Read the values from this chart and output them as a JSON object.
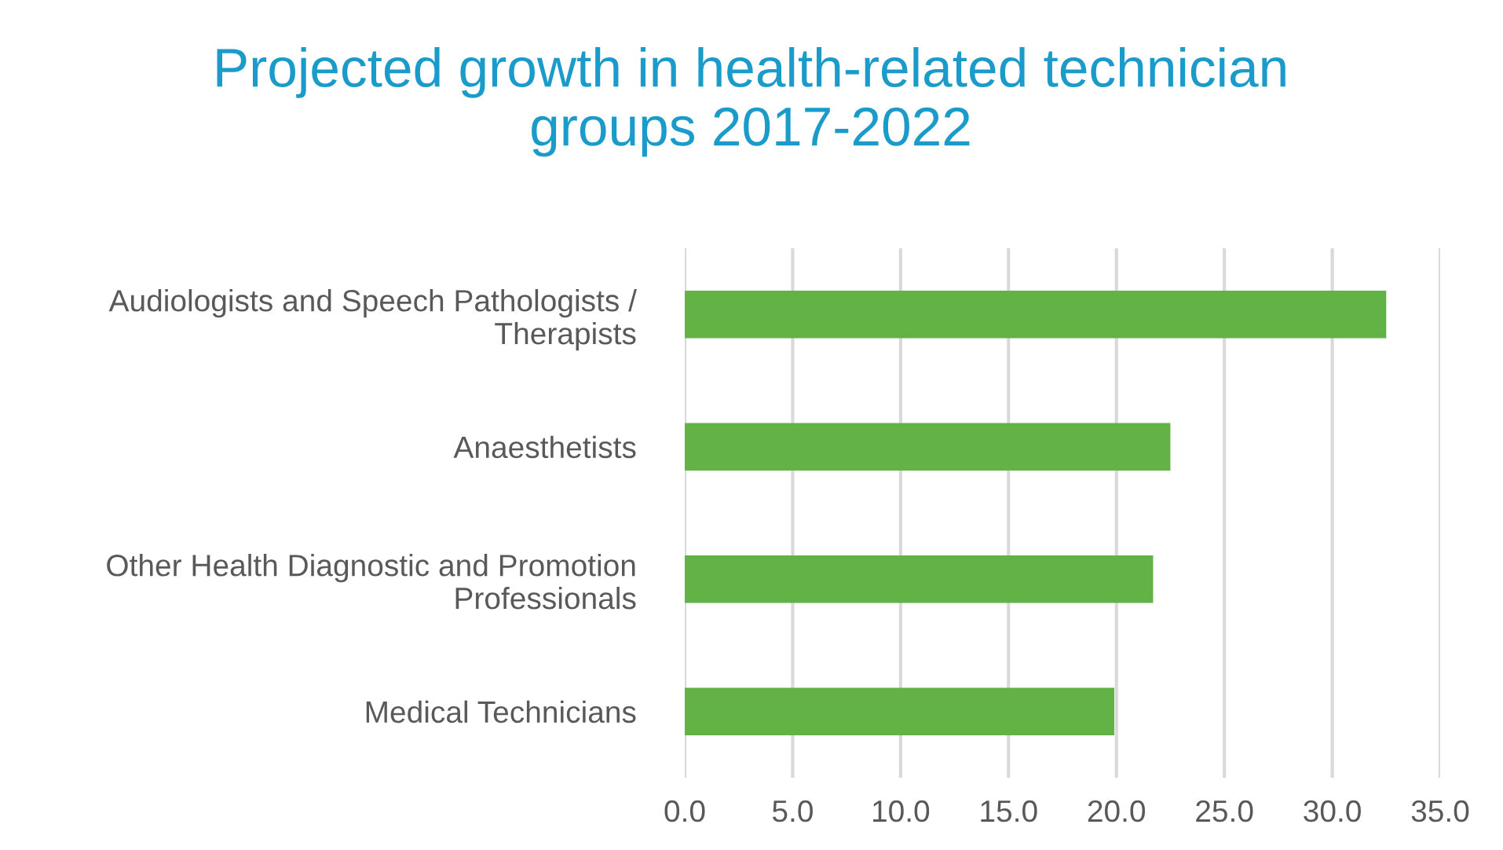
{
  "chart_data": {
    "type": "bar",
    "orientation": "horizontal",
    "title": "Projected growth in health-related technician\ngroups 2017-2022",
    "categories": [
      "Audiologists and Speech Pathologists /\nTherapists",
      "Anaesthetists",
      "Other Health Diagnostic and Promotion\nProfessionals",
      "Medical Technicians"
    ],
    "values": [
      32.5,
      22.5,
      21.7,
      19.9
    ],
    "color": "#62b246",
    "xlim": [
      0,
      35
    ],
    "xticks": [
      {
        "value": 0,
        "label": "0.0"
      },
      {
        "value": 5,
        "label": "5.0"
      },
      {
        "value": 10,
        "label": "10.0"
      },
      {
        "value": 15,
        "label": "15.0"
      },
      {
        "value": 20,
        "label": "20.0"
      },
      {
        "value": 25,
        "label": "25.0"
      },
      {
        "value": 30,
        "label": "30.0"
      },
      {
        "value": 35,
        "label": "35.0"
      }
    ],
    "grid": "x"
  }
}
